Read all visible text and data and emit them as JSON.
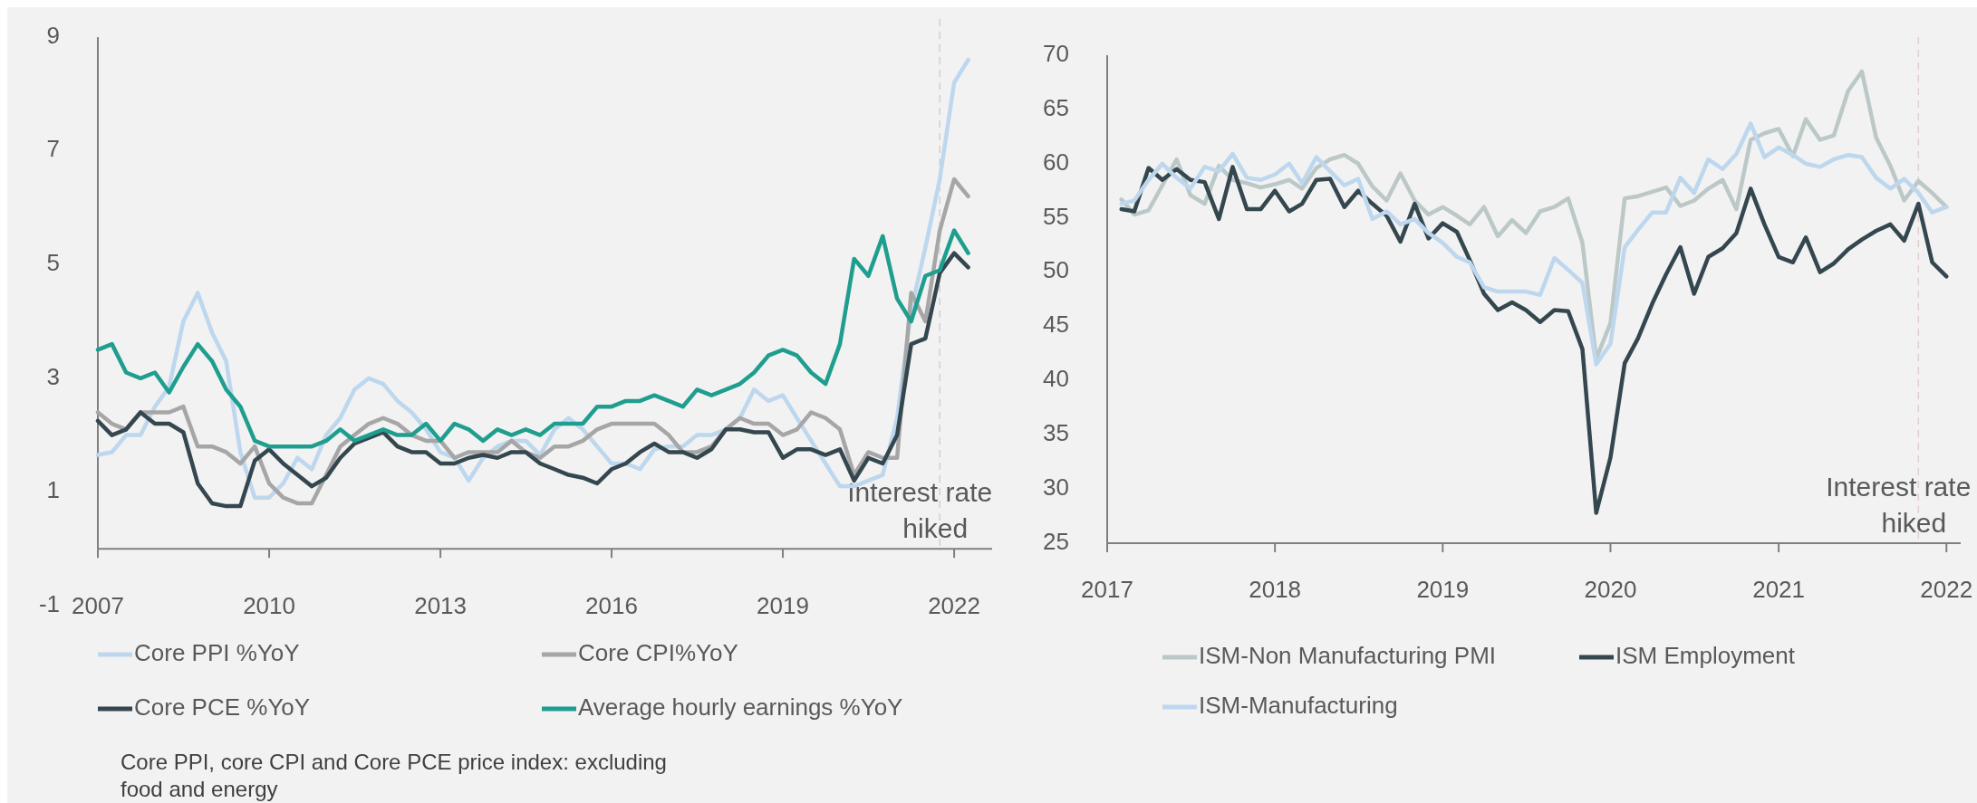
{
  "chart_data": [
    {
      "type": "line",
      "x": [
        "2007-01",
        "2007-04",
        "2007-07",
        "2007-10",
        "2008-01",
        "2008-04",
        "2008-07",
        "2008-10",
        "2009-01",
        "2009-04",
        "2009-07",
        "2009-10",
        "2010-01",
        "2010-04",
        "2010-07",
        "2010-10",
        "2011-01",
        "2011-04",
        "2011-07",
        "2011-10",
        "2012-01",
        "2012-04",
        "2012-07",
        "2012-10",
        "2013-01",
        "2013-04",
        "2013-07",
        "2013-10",
        "2014-01",
        "2014-04",
        "2014-07",
        "2014-10",
        "2015-01",
        "2015-04",
        "2015-07",
        "2015-10",
        "2016-01",
        "2016-04",
        "2016-07",
        "2016-10",
        "2017-01",
        "2017-04",
        "2017-07",
        "2017-10",
        "2018-01",
        "2018-04",
        "2018-07",
        "2018-10",
        "2019-01",
        "2019-04",
        "2019-07",
        "2019-10",
        "2020-01",
        "2020-04",
        "2020-07",
        "2020-10",
        "2021-01",
        "2021-04",
        "2021-07",
        "2021-10",
        "2022-01",
        "2022-04"
      ],
      "series": [
        {
          "name": "Core PPI %YoY",
          "color": "#bdd7ee",
          "values": [
            1.65,
            1.7,
            2.0,
            2.0,
            2.5,
            2.85,
            4.0,
            4.5,
            3.8,
            3.3,
            1.7,
            0.9,
            0.9,
            1.15,
            1.6,
            1.4,
            2.0,
            2.3,
            2.8,
            3.0,
            2.9,
            2.6,
            2.4,
            2.1,
            1.7,
            1.6,
            1.2,
            1.6,
            1.8,
            1.9,
            1.9,
            1.65,
            2.1,
            2.3,
            2.1,
            1.8,
            1.5,
            1.5,
            1.4,
            1.75,
            1.8,
            1.8,
            2.0,
            2.0,
            2.1,
            2.3,
            2.8,
            2.6,
            2.7,
            2.3,
            1.9,
            1.5,
            1.1,
            1.1,
            1.2,
            1.3,
            2.3,
            4.2,
            5.3,
            6.5,
            8.2,
            8.6
          ]
        },
        {
          "name": "Core CPI%YoY",
          "color": "#a6a6a6",
          "values": [
            2.4,
            2.2,
            2.1,
            2.4,
            2.4,
            2.4,
            2.5,
            1.8,
            1.8,
            1.7,
            1.5,
            1.8,
            1.15,
            0.9,
            0.8,
            0.8,
            1.3,
            1.8,
            2.0,
            2.2,
            2.3,
            2.2,
            2.0,
            1.9,
            1.9,
            1.6,
            1.7,
            1.7,
            1.7,
            1.9,
            1.7,
            1.6,
            1.8,
            1.8,
            1.9,
            2.1,
            2.2,
            2.2,
            2.2,
            2.2,
            2.0,
            1.7,
            1.7,
            1.8,
            2.1,
            2.3,
            2.2,
            2.2,
            2.0,
            2.1,
            2.4,
            2.3,
            2.1,
            1.3,
            1.7,
            1.6,
            1.6,
            4.5,
            4.0,
            5.6,
            6.5,
            6.2
          ]
        },
        {
          "name": "Core PCE %YoY",
          "color": "#34474f",
          "values": [
            2.25,
            2.0,
            2.1,
            2.4,
            2.2,
            2.2,
            2.05,
            1.15,
            0.8,
            0.75,
            0.75,
            1.55,
            1.75,
            1.5,
            1.3,
            1.1,
            1.25,
            1.6,
            1.85,
            1.95,
            2.05,
            1.8,
            1.7,
            1.7,
            1.5,
            1.5,
            1.6,
            1.65,
            1.6,
            1.7,
            1.7,
            1.5,
            1.4,
            1.3,
            1.25,
            1.15,
            1.4,
            1.5,
            1.7,
            1.85,
            1.7,
            1.7,
            1.6,
            1.75,
            2.1,
            2.1,
            2.05,
            2.05,
            1.6,
            1.75,
            1.75,
            1.65,
            1.75,
            1.2,
            1.6,
            1.5,
            2.0,
            3.6,
            3.7,
            4.85,
            5.2,
            4.95
          ]
        },
        {
          "name": "Average hourly earnings %YoY",
          "color": "#1f9e8f",
          "values": [
            3.5,
            3.6,
            3.1,
            3.0,
            3.1,
            2.75,
            3.2,
            3.6,
            3.3,
            2.8,
            2.5,
            1.9,
            1.8,
            1.8,
            1.8,
            1.8,
            1.9,
            2.1,
            1.9,
            2.0,
            2.1,
            2.0,
            2.0,
            2.2,
            1.9,
            2.2,
            2.1,
            1.9,
            2.1,
            2.0,
            2.1,
            2.0,
            2.2,
            2.2,
            2.2,
            2.5,
            2.5,
            2.6,
            2.6,
            2.7,
            2.6,
            2.5,
            2.8,
            2.7,
            2.8,
            2.9,
            3.1,
            3.4,
            3.5,
            3.4,
            3.1,
            2.9,
            3.6,
            5.1,
            4.8,
            5.5,
            4.4,
            4.0,
            4.8,
            4.9,
            5.6,
            5.2
          ]
        }
      ],
      "xlim": [
        "2007-01",
        "2022-09"
      ],
      "xticks": [
        "2007",
        "2010",
        "2013",
        "2016",
        "2019",
        "2022"
      ],
      "ylim": [
        -1,
        9
      ],
      "yticks": [
        -1,
        1,
        3,
        5,
        7,
        9
      ],
      "ref_lines": [
        {
          "axis": "x",
          "value": "2021-10",
          "label": "Interest rate hiked",
          "color": "#d0d0d0",
          "line_style": "dashed"
        }
      ],
      "legend": "bottom",
      "annotations": [
        "Core PPI, core CPI and Core PCE price index: excluding food and energy"
      ]
    },
    {
      "type": "line",
      "x": [
        "2017-02",
        "2017-03",
        "2017-04",
        "2017-05",
        "2017-06",
        "2017-07",
        "2017-08",
        "2017-09",
        "2017-10",
        "2017-11",
        "2017-12",
        "2018-01",
        "2018-02",
        "2018-03",
        "2018-04",
        "2018-05",
        "2018-06",
        "2018-07",
        "2018-08",
        "2018-09",
        "2018-10",
        "2018-11",
        "2018-12",
        "2019-01",
        "2019-02",
        "2019-03",
        "2019-04",
        "2019-05",
        "2019-06",
        "2019-07",
        "2019-08",
        "2019-09",
        "2019-10",
        "2019-11",
        "2019-12",
        "2020-01",
        "2020-02",
        "2020-03",
        "2020-04",
        "2020-05",
        "2020-06",
        "2020-07",
        "2020-08",
        "2020-09",
        "2020-10",
        "2020-11",
        "2020-12",
        "2021-01",
        "2021-02",
        "2021-03",
        "2021-04",
        "2021-05",
        "2021-06",
        "2021-07",
        "2021-08",
        "2021-09",
        "2021-10",
        "2021-11",
        "2021-12",
        "2022-01"
      ],
      "series": [
        {
          "name": "ISM-Non Manufacturing PMI",
          "color": "#bcc8c8",
          "values": [
            56.7,
            55.3,
            55.7,
            58.0,
            60.4,
            57.1,
            56.3,
            59.8,
            58.5,
            58.2,
            57.8,
            58.1,
            58.5,
            57.7,
            59.6,
            60.4,
            60.8,
            60.0,
            57.9,
            56.6,
            59.1,
            56.6,
            55.3,
            56.0,
            55.2,
            54.4,
            56.0,
            53.3,
            54.8,
            53.6,
            55.6,
            56.0,
            56.8,
            52.7,
            42.0,
            45.3,
            56.8,
            57.0,
            57.4,
            57.8,
            56.1,
            56.6,
            57.7,
            58.5,
            55.8,
            62.2,
            62.8,
            63.2,
            60.7,
            64.1,
            62.2,
            62.6,
            66.7,
            68.5,
            62.4,
            59.8,
            56.6,
            58.4,
            57.3,
            56.0
          ]
        },
        {
          "name": "ISM Employment",
          "color": "#34474f",
          "values": [
            55.8,
            55.6,
            59.6,
            58.5,
            59.5,
            58.5,
            58.3,
            54.9,
            59.7,
            55.8,
            55.8,
            57.5,
            55.6,
            56.3,
            58.5,
            58.6,
            56.0,
            57.5,
            56.3,
            55.2,
            52.8,
            56.3,
            53.1,
            54.5,
            53.7,
            51.1,
            48.0,
            46.5,
            47.2,
            46.5,
            45.4,
            46.5,
            46.4,
            42.9,
            27.8,
            32.9,
            41.6,
            43.9,
            47.1,
            49.8,
            52.3,
            48.0,
            51.4,
            52.2,
            53.6,
            57.7,
            54.4,
            51.4,
            50.9,
            53.2,
            50.0,
            50.8,
            52.1,
            53.0,
            53.8,
            54.4,
            52.9,
            56.3,
            50.9,
            49.6
          ]
        },
        {
          "name": "ISM-Manufacturing",
          "color": "#bdd7ee",
          "values": [
            56.3,
            56.6,
            58.5,
            60.0,
            58.7,
            57.7,
            59.7,
            59.3,
            60.9,
            58.7,
            58.5,
            59.0,
            60.0,
            58.2,
            60.6,
            59.3,
            58.0,
            58.6,
            54.9,
            55.6,
            54.4,
            54.9,
            53.6,
            52.7,
            51.4,
            50.9,
            48.6,
            48.2,
            48.2,
            48.2,
            47.9,
            51.3,
            50.2,
            49.0,
            41.5,
            43.4,
            52.3,
            53.9,
            55.5,
            55.5,
            58.7,
            57.3,
            60.4,
            59.5,
            60.9,
            63.7,
            60.6,
            61.5,
            60.8,
            60.0,
            59.7,
            60.4,
            60.8,
            60.6,
            58.7,
            57.7,
            58.6,
            57.3,
            55.5,
            56.0
          ]
        }
      ],
      "xlim": [
        "2017",
        "2022-02"
      ],
      "xticks": [
        "2017",
        "2018",
        "2019",
        "2020",
        "2021",
        "2022"
      ],
      "ylim": [
        25,
        70
      ],
      "yticks": [
        25,
        30,
        35,
        40,
        45,
        50,
        55,
        60,
        65,
        70
      ],
      "ref_lines": [
        {
          "axis": "x",
          "value": "2021-11",
          "label": "Interest rate hiked",
          "color": "#e0d0d0",
          "line_style": "dashed"
        }
      ],
      "legend": "bottom"
    }
  ]
}
